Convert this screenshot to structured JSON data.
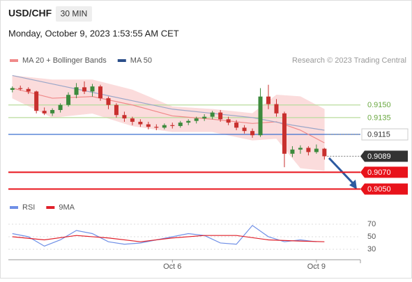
{
  "header": {
    "symbol": "USD/CHF",
    "interval": "30 MIN",
    "timestamp": "Monday, October 9, 2023 1:53:55 AM CET"
  },
  "chart_data": [
    {
      "type": "candlestick",
      "credit": "Research © 2023 Trading Central",
      "up_color": "#3c8a3c",
      "down_color": "#c8302e",
      "open": [
        0.9168,
        0.917,
        0.9169,
        0.9166,
        0.9143,
        0.914,
        0.9144,
        0.915,
        0.9162,
        0.9171,
        0.9166,
        0.9172,
        0.9158,
        0.915,
        0.9138,
        0.9134,
        0.913,
        0.9127,
        0.9124,
        0.9123,
        0.9126,
        0.9125,
        0.9129,
        0.9131,
        0.9134,
        0.9136,
        0.9141,
        0.9133,
        0.9129,
        0.9123,
        0.9119,
        0.9114,
        0.916,
        0.9151,
        0.914,
        0.9092,
        0.9097,
        0.9099,
        0.9094,
        0.9098
      ],
      "high": [
        0.9172,
        0.9173,
        0.9171,
        0.9167,
        0.9147,
        0.9146,
        0.9152,
        0.9165,
        0.9176,
        0.9178,
        0.9175,
        0.9174,
        0.916,
        0.9152,
        0.9142,
        0.9136,
        0.9133,
        0.913,
        0.9127,
        0.9128,
        0.9129,
        0.9131,
        0.9133,
        0.9136,
        0.9139,
        0.9143,
        0.9144,
        0.9136,
        0.9132,
        0.9126,
        0.9122,
        0.917,
        0.9174,
        0.9157,
        0.9142,
        0.9101,
        0.9102,
        0.9101,
        0.9103,
        0.9099
      ],
      "low": [
        0.9165,
        0.9167,
        0.9163,
        0.914,
        0.9138,
        0.9137,
        0.9141,
        0.9148,
        0.9158,
        0.9163,
        0.916,
        0.9155,
        0.9145,
        0.9135,
        0.913,
        0.9126,
        0.9124,
        0.9121,
        0.912,
        0.9121,
        0.9122,
        0.9123,
        0.9126,
        0.9128,
        0.9131,
        0.9133,
        0.913,
        0.9126,
        0.912,
        0.9116,
        0.9111,
        0.9112,
        0.9145,
        0.9136,
        0.9076,
        0.9088,
        0.9092,
        0.909,
        0.9092,
        0.9085
      ],
      "close": [
        0.917,
        0.9169,
        0.9166,
        0.9143,
        0.914,
        0.9144,
        0.915,
        0.9162,
        0.9171,
        0.9166,
        0.9172,
        0.9158,
        0.915,
        0.9138,
        0.9134,
        0.913,
        0.9127,
        0.9124,
        0.9123,
        0.9126,
        0.9125,
        0.9129,
        0.9131,
        0.9134,
        0.9136,
        0.9141,
        0.9133,
        0.9129,
        0.9123,
        0.9119,
        0.9114,
        0.916,
        0.9151,
        0.914,
        0.9092,
        0.9097,
        0.9099,
        0.9094,
        0.9098,
        0.9089
      ],
      "xlim": [
        -0.5,
        43.5
      ],
      "xticks": [
        {
          "value": 20,
          "label": "Oct 6"
        },
        {
          "value": 38,
          "label": "Oct 9"
        }
      ],
      "ylim": [
        0.9043,
        0.9192
      ],
      "series": [
        {
          "name": "MA 20 + Bollinger Bands",
          "color": "#f08a8a",
          "band_color": "#fbdcdc",
          "x": [
            0,
            5,
            10,
            15,
            20,
            25,
            30,
            33,
            36,
            39
          ],
          "values": [
            0.917,
            0.9158,
            0.916,
            0.915,
            0.9137,
            0.9133,
            0.9128,
            0.913,
            0.912,
            0.9105
          ],
          "upper": [
            0.9185,
            0.918,
            0.918,
            0.9168,
            0.9148,
            0.9145,
            0.914,
            0.9162,
            0.916,
            0.9145
          ],
          "lower": [
            0.9158,
            0.9135,
            0.914,
            0.9125,
            0.9118,
            0.9118,
            0.9108,
            0.911,
            0.9075,
            0.9072
          ]
        },
        {
          "name": "MA 50",
          "color": "#2c4f8a",
          "line_color": "#9aa6c8",
          "x": [
            0,
            5,
            10,
            15,
            20,
            25,
            30,
            35,
            39
          ],
          "values": [
            0.9185,
            0.9175,
            0.9165,
            0.9155,
            0.9145,
            0.914,
            0.9135,
            0.9126,
            0.912
          ]
        }
      ],
      "levels": [
        {
          "value": 0.915,
          "label": "0.9150",
          "color": "#b9dc9c",
          "label_color": "#6aa840",
          "label_style": "text",
          "line": "solid"
        },
        {
          "value": 0.9135,
          "label": "0.9135",
          "color": "#b9dc9c",
          "label_color": "#6aa840",
          "label_style": "text",
          "line": "solid"
        },
        {
          "value": 0.9115,
          "label": "0.9115",
          "color": "#3a6fcf",
          "label_color": "#333333",
          "label_style": "outline",
          "line": "solid"
        },
        {
          "value": 0.9089,
          "label": "0.9089",
          "color": "#333333",
          "label_color": "#ffffff",
          "label_style": "filled",
          "line": "dotted"
        },
        {
          "value": 0.907,
          "label": "0.9070",
          "color": "#e8131b",
          "label_color": "#ffffff",
          "label_style": "filled",
          "line": "solid"
        },
        {
          "value": 0.905,
          "label": "0.9050",
          "color": "#e8131b",
          "label_color": "#ffffff",
          "label_style": "filled",
          "line": "solid"
        }
      ]
    },
    {
      "type": "line",
      "xlim": [
        -0.5,
        43.5
      ],
      "ylim": [
        14.4,
        81.1
      ],
      "yticks": [
        30,
        50,
        70
      ],
      "series": [
        {
          "name": "RSI",
          "color": "#6f8fe6",
          "x": [
            0,
            2,
            4,
            6,
            8,
            10,
            12,
            14,
            16,
            18,
            20,
            22,
            24,
            26,
            28,
            30,
            32,
            34,
            36,
            38
          ],
          "values": [
            55,
            50,
            35,
            45,
            60,
            55,
            42,
            38,
            40,
            45,
            50,
            55,
            52,
            40,
            38,
            68,
            50,
            42,
            45,
            42
          ]
        },
        {
          "name": "9MA",
          "color": "#e0202a",
          "x": [
            0,
            4,
            8,
            12,
            16,
            20,
            24,
            28,
            32,
            36,
            39
          ],
          "values": [
            50,
            45,
            52,
            48,
            42,
            48,
            52,
            52,
            45,
            43,
            42
          ]
        }
      ]
    }
  ]
}
